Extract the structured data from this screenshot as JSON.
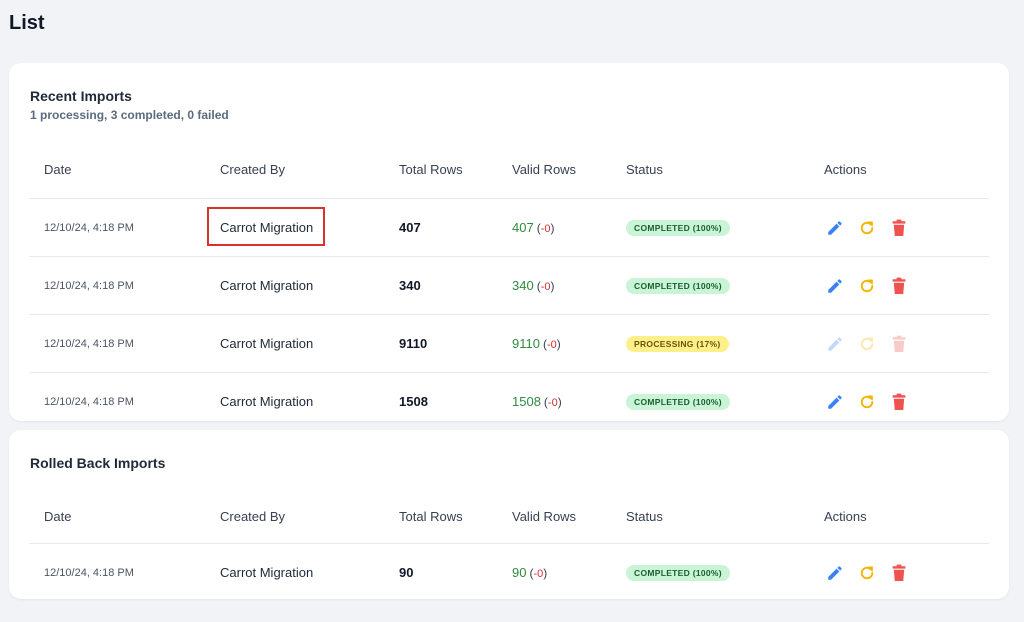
{
  "page": {
    "title": "List"
  },
  "colors": {
    "edit": "#3b82f6",
    "retry": "#f5b400",
    "delete": "#ef5350"
  },
  "recent": {
    "title": "Recent Imports",
    "summary": "1 processing, 3 completed, 0 failed",
    "columns": {
      "date": "Date",
      "created_by": "Created By",
      "total_rows": "Total Rows",
      "valid_rows": "Valid Rows",
      "status": "Status",
      "actions": "Actions"
    },
    "rows": [
      {
        "date": "12/10/24, 4:18 PM",
        "created_by": "Carrot Migration",
        "total": "407",
        "valid": "407",
        "invalid": "-0",
        "status": "COMPLETED (100%)"
      },
      {
        "date": "12/10/24, 4:18 PM",
        "created_by": "Carrot Migration",
        "total": "340",
        "valid": "340",
        "invalid": "-0",
        "status": "COMPLETED (100%)"
      },
      {
        "date": "12/10/24, 4:18 PM",
        "created_by": "Carrot Migration",
        "total": "9110",
        "valid": "9110",
        "invalid": "-0",
        "status": "PROCESSING (17%)"
      },
      {
        "date": "12/10/24, 4:18 PM",
        "created_by": "Carrot Migration",
        "total": "1508",
        "valid": "1508",
        "invalid": "-0",
        "status": "COMPLETED (100%)"
      }
    ]
  },
  "rolled": {
    "title": "Rolled Back Imports",
    "columns": {
      "date": "Date",
      "created_by": "Created By",
      "total_rows": "Total Rows",
      "valid_rows": "Valid Rows",
      "status": "Status",
      "actions": "Actions"
    },
    "rows": [
      {
        "date": "12/10/24, 4:18 PM",
        "created_by": "Carrot Migration",
        "total": "90",
        "valid": "90",
        "invalid": "-0",
        "status": "COMPLETED (100%)"
      }
    ]
  }
}
